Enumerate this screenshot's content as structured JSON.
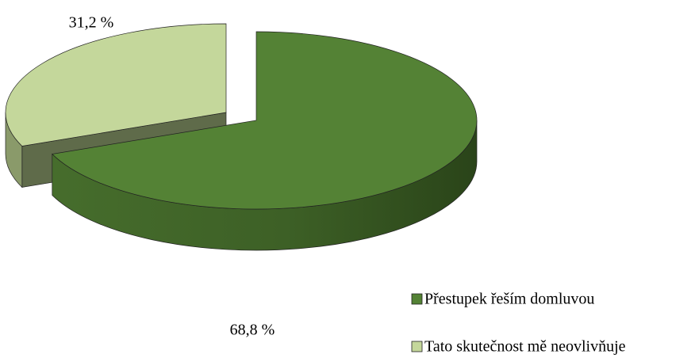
{
  "chart_data": {
    "type": "pie",
    "categories": [
      "Přestupek řeším domluvou",
      "Tato skutečnost mě neovlivňuje"
    ],
    "values": [
      68.8,
      31.2
    ],
    "value_labels": [
      "68,8 %",
      "31,2 %"
    ],
    "colors": [
      "#548235",
      "#c4d79b"
    ],
    "legend": "bottom-right"
  }
}
